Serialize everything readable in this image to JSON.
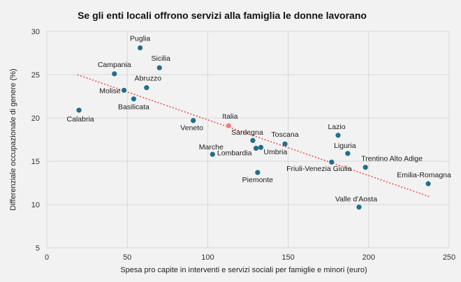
{
  "chart_data": {
    "type": "scatter",
    "title": "Se gli enti locali offrono servizi alla famiglia le donne lavorano",
    "xlabel": "Spesa pro capite in interventi e servizi sociali per famiglie e minori (euro)",
    "ylabel": "Differenziale occupazionale di genere (%)",
    "xlim": [
      0,
      250
    ],
    "ylim": [
      5,
      30
    ],
    "xticks": [
      0,
      50,
      100,
      150,
      200,
      250
    ],
    "yticks": [
      5,
      10,
      15,
      20,
      25,
      30
    ],
    "grid": true,
    "point_color": "#1f6e8c",
    "highlight_color": "#f08080",
    "trendline": {
      "x0": 19,
      "y0": 25.0,
      "x1": 238,
      "y1": 10.9,
      "color": "#f05050",
      "style": "dotted"
    },
    "points": [
      {
        "label": "Puglia",
        "x": 58,
        "y": 28.1
      },
      {
        "label": "Sicilia",
        "x": 70,
        "y": 25.8
      },
      {
        "label": "Campania",
        "x": 42,
        "y": 25.1
      },
      {
        "label": "Abruzzo",
        "x": 62,
        "y": 23.5
      },
      {
        "label": "Molise",
        "x": 48,
        "y": 23.2
      },
      {
        "label": "Basilicata",
        "x": 54,
        "y": 22.2
      },
      {
        "label": "Calabria",
        "x": 20,
        "y": 20.9
      },
      {
        "label": "Veneto",
        "x": 91,
        "y": 19.7
      },
      {
        "label": "Italia",
        "x": 113,
        "y": 19.1,
        "highlight": true
      },
      {
        "label": "Sardegna",
        "x": 128,
        "y": 17.4
      },
      {
        "label": "Toscana",
        "x": 148,
        "y": 17.0
      },
      {
        "label": "Umbria",
        "x": 133,
        "y": 16.6
      },
      {
        "label": "Lombardia",
        "x": 130,
        "y": 16.5
      },
      {
        "label": "Marche",
        "x": 103,
        "y": 15.8
      },
      {
        "label": "Piemonte",
        "x": 131,
        "y": 13.7
      },
      {
        "label": "Lazio",
        "x": 181,
        "y": 18.0
      },
      {
        "label": "Liguria",
        "x": 187,
        "y": 15.9
      },
      {
        "label": "Trentino Alto Adige",
        "x": 198,
        "y": 14.3
      },
      {
        "label": "Friuli-Venezia Giulia",
        "x": 177,
        "y": 14.9
      },
      {
        "label": "Emilia-Romagna",
        "x": 237,
        "y": 12.4
      },
      {
        "label": "Valle d'Aosta",
        "x": 194,
        "y": 9.7
      }
    ]
  }
}
